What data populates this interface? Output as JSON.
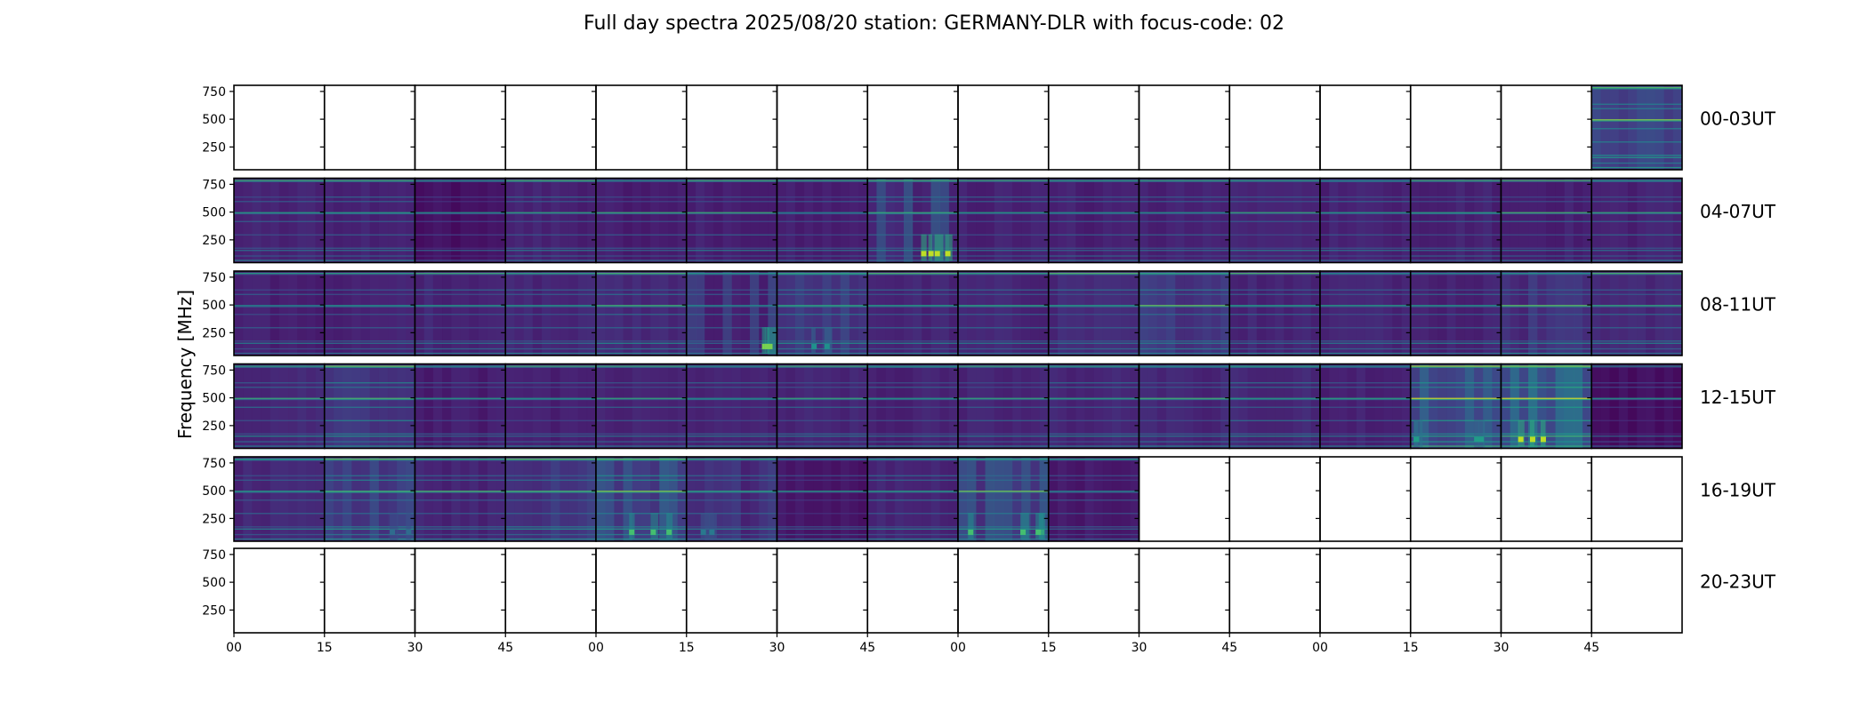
{
  "chart_data": {
    "type": "heatmap",
    "title": "Full day spectra 2025/08/20 station: GERMANY-DLR with focus-code: 02",
    "ylabel": "Frequency [MHz]",
    "xlabel": "",
    "ylim": [
      45,
      805
    ],
    "y_ticks": [
      "250",
      "500",
      "750"
    ],
    "y_tick_values": [
      250,
      500,
      750
    ],
    "x_tick_labels": [
      "00",
      "15",
      "30",
      "45",
      "00",
      "15",
      "30",
      "45",
      "00",
      "15",
      "30",
      "45",
      "00",
      "15",
      "30",
      "45"
    ],
    "colormap": "viridis",
    "rows": [
      {
        "label": "00-03UT",
        "cells": [
          0,
          0,
          0,
          0,
          0,
          0,
          0,
          0,
          0,
          0,
          0,
          0,
          0,
          0,
          0,
          0.35
        ],
        "bursts": [
          0,
          0,
          0,
          0,
          0,
          0,
          0,
          0,
          0,
          0,
          0,
          0,
          0,
          0,
          0,
          0.25
        ]
      },
      {
        "label": "04-07UT",
        "cells": [
          0.18,
          0.2,
          0.08,
          0.18,
          0.15,
          0.17,
          0.15,
          0.2,
          0.17,
          0.17,
          0.17,
          0.17,
          0.17,
          0.18,
          0.17,
          0.18
        ],
        "bursts": [
          0,
          0.15,
          0,
          0,
          0,
          0,
          0,
          0.9,
          0,
          0,
          0,
          0,
          0,
          0,
          0,
          0
        ]
      },
      {
        "label": "08-11UT",
        "cells": [
          0.16,
          0.17,
          0.2,
          0.2,
          0.22,
          0.16,
          0.25,
          0.2,
          0.2,
          0.22,
          0.26,
          0.2,
          0.2,
          0.18,
          0.22,
          0.22
        ],
        "bursts": [
          0,
          0,
          0,
          0,
          0,
          0.8,
          0.5,
          0,
          0,
          0,
          0.3,
          0,
          0,
          0,
          0.3,
          0.2
        ]
      },
      {
        "label": "12-15UT",
        "cells": [
          0.22,
          0.3,
          0.15,
          0.17,
          0.18,
          0.18,
          0.2,
          0.18,
          0.18,
          0.2,
          0.2,
          0.22,
          0.17,
          0.4,
          0.45,
          0.06
        ],
        "bursts": [
          0,
          0.3,
          0,
          0,
          0,
          0,
          0,
          0,
          0,
          0,
          0,
          0,
          0,
          0.55,
          0.9,
          0
        ]
      },
      {
        "label": "16-19UT",
        "cells": [
          0.2,
          0.3,
          0.2,
          0.25,
          0.32,
          0.2,
          0.1,
          0.2,
          0.28,
          0.12,
          0,
          0,
          0,
          0,
          0,
          0
        ],
        "bursts": [
          0.2,
          0.35,
          0,
          0.3,
          0.7,
          0.4,
          0,
          0.15,
          0.7,
          0,
          0,
          0,
          0,
          0,
          0,
          0
        ]
      },
      {
        "label": "20-23UT",
        "cells": [
          0,
          0,
          0,
          0,
          0,
          0,
          0,
          0,
          0,
          0,
          0,
          0,
          0,
          0,
          0,
          0
        ],
        "bursts": [
          0,
          0,
          0,
          0,
          0,
          0,
          0,
          0,
          0,
          0,
          0,
          0,
          0,
          0,
          0,
          0
        ]
      }
    ]
  }
}
